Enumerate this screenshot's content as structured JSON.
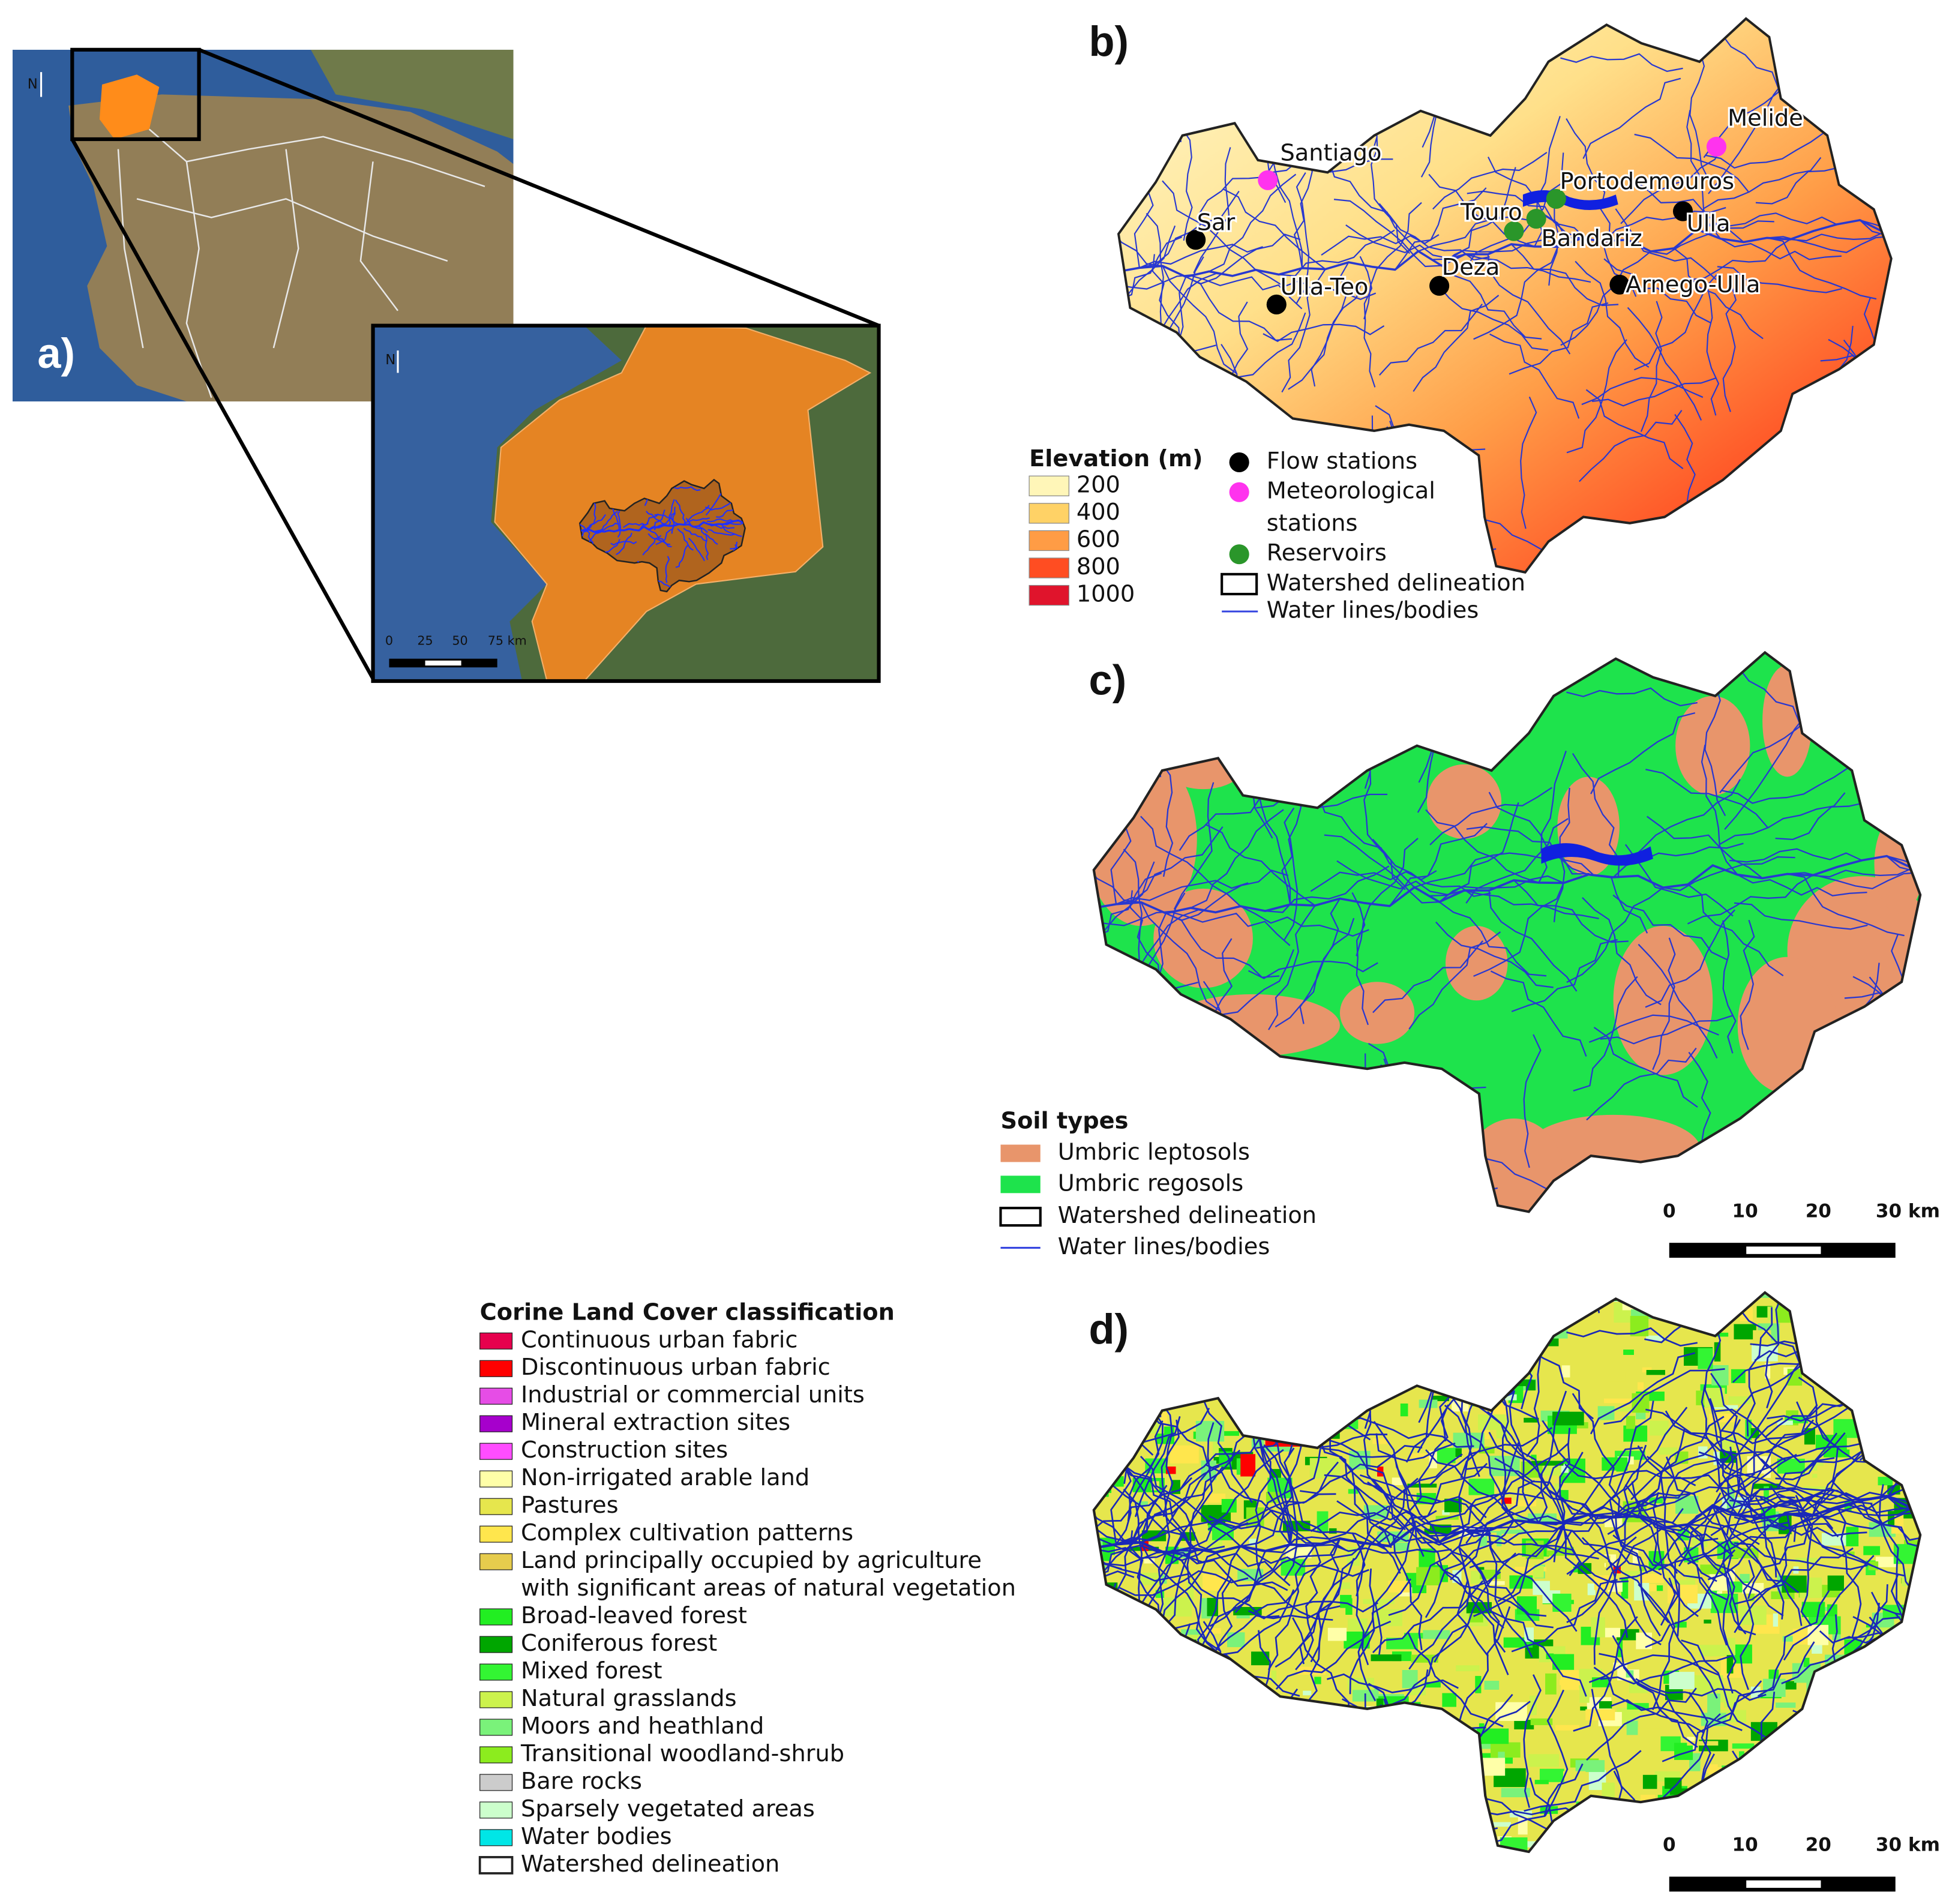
{
  "panel_a": {
    "label": "a)",
    "north": "N",
    "inset_north": "N",
    "inset_scale": [
      "0",
      "25",
      "50",
      "75 km"
    ]
  },
  "panel_b": {
    "label": "b)",
    "elevation_legend": {
      "title": "Elevation (m)",
      "values": [
        200,
        400,
        600,
        800,
        1000
      ],
      "colors": [
        "#fff6b8",
        "#ffd266",
        "#ff9c45",
        "#ff4d22",
        "#e0142c"
      ]
    },
    "stations_legend": [
      {
        "lines": [
          "Flow stations"
        ],
        "color": "#000000",
        "places": [
          "Sar",
          "Ulla-Teo",
          "Deza",
          "Ulla",
          "Arnego-Ulla"
        ]
      },
      {
        "lines": [
          "Meteorological",
          "stations"
        ],
        "color": "#ff33ee",
        "places": [
          "Santiago",
          "Melide"
        ]
      },
      {
        "lines": [
          "Reservoirs"
        ],
        "color": "#2a962a",
        "places": [
          "Touro",
          "Bandariz",
          "Portodemouros"
        ]
      },
      {
        "lines": [
          "Watershed delineation"
        ]
      },
      {
        "lines": [
          "Water lines/bodies"
        ],
        "color": "#3444e0"
      }
    ]
  },
  "panel_c": {
    "label": "c)",
    "legend_title": "Soil types",
    "items": [
      {
        "label": "Umbric leptosols",
        "color": "#e8956b"
      },
      {
        "label": "Umbric regosols",
        "color": "#1ee34c"
      },
      {
        "label": "Watershed delineation"
      },
      {
        "label": "Water lines/bodies",
        "color": "#3444e0"
      }
    ],
    "scale": [
      "0",
      "10",
      "20",
      "30 km"
    ]
  },
  "panel_d": {
    "label": "d)",
    "scale": [
      "0",
      "10",
      "20",
      "30 km"
    ],
    "legend_title": "Corine Land Cover classification",
    "items": [
      {
        "lines": [
          "Continuous urban fabric"
        ],
        "color": "#e6004d"
      },
      {
        "lines": [
          "Discontinuous urban fabric"
        ],
        "color": "#ff0000"
      },
      {
        "lines": [
          "Industrial or commercial units"
        ],
        "color": "#e64de6"
      },
      {
        "lines": [
          "Mineral extraction sites"
        ],
        "color": "#a600cc"
      },
      {
        "lines": [
          "Construction sites"
        ],
        "color": "#ff4dff"
      },
      {
        "lines": [
          "Non-irrigated arable land"
        ],
        "color": "#ffffa8"
      },
      {
        "lines": [
          "Pastures"
        ],
        "color": "#e6e64d"
      },
      {
        "lines": [
          "Complex cultivation patterns"
        ],
        "color": "#ffe64d"
      },
      {
        "lines": [
          "Land principally occupied by agriculture",
          "with significant areas of natural vegetation"
        ],
        "color": "#e6cc4d"
      },
      {
        "lines": [
          "Broad-leaved forest"
        ],
        "color": "#22ee22"
      },
      {
        "lines": [
          "Coniferous forest"
        ],
        "color": "#00a600"
      },
      {
        "lines": [
          "Mixed forest"
        ],
        "color": "#33f533"
      },
      {
        "lines": [
          "Natural grasslands"
        ],
        "color": "#ccf24d"
      },
      {
        "lines": [
          "Moors and heathland"
        ],
        "color": "#7af27a"
      },
      {
        "lines": [
          "Transitional woodland-shrub"
        ],
        "color": "#8cec1e"
      },
      {
        "lines": [
          "Bare rocks"
        ],
        "color": "#cccccc"
      },
      {
        "lines": [
          "Sparsely vegetated areas"
        ],
        "color": "#ccffcc"
      },
      {
        "lines": [
          "Water bodies"
        ],
        "color": "#00e6e6"
      },
      {
        "lines": [
          "Watershed delineation"
        ],
        "color": "#ffffff"
      }
    ]
  }
}
